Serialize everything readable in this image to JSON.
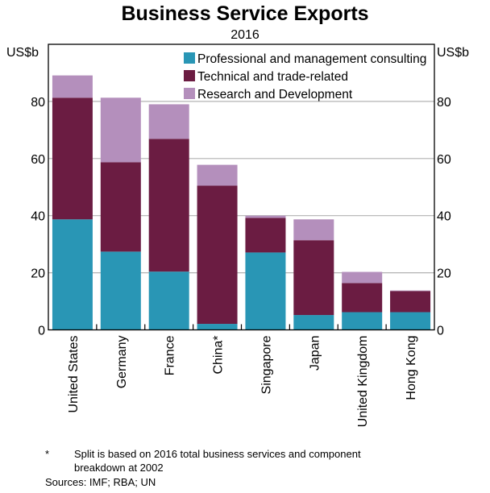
{
  "chart_data": {
    "type": "bar",
    "stacked": true,
    "title": "Business Service Exports",
    "subtitle": "2016",
    "xlabel": "",
    "ylabel_left": "US$b",
    "ylabel_right": "US$b",
    "ylim": [
      0,
      100
    ],
    "yticks": [
      0,
      20,
      40,
      60,
      80
    ],
    "grid": true,
    "legend_position": "top-right",
    "categories": [
      "United States",
      "Germany",
      "France",
      "China*",
      "Singapore",
      "Japan",
      "United Kingdom",
      "Hong Kong"
    ],
    "series": [
      {
        "name": "Professional and management consulting",
        "color": "#2996B5",
        "values": [
          38.7,
          27.4,
          20.4,
          2.1,
          27.1,
          5.2,
          6.2,
          6.2
        ]
      },
      {
        "name": "Technical and trade-related",
        "color": "#6B1C42",
        "values": [
          42.6,
          31.3,
          46.5,
          48.4,
          12.1,
          26.2,
          10.2,
          7.4
        ]
      },
      {
        "name": "Research and Development",
        "color": "#B48FBC",
        "values": [
          7.8,
          22.6,
          12.1,
          7.3,
          0.8,
          7.3,
          3.9,
          0.2
        ]
      }
    ]
  },
  "footnote": {
    "mark": "*",
    "text": "Split is based on 2016 total business services and component breakdown at 2002"
  },
  "sources": "Sources:  IMF; RBA; UN"
}
